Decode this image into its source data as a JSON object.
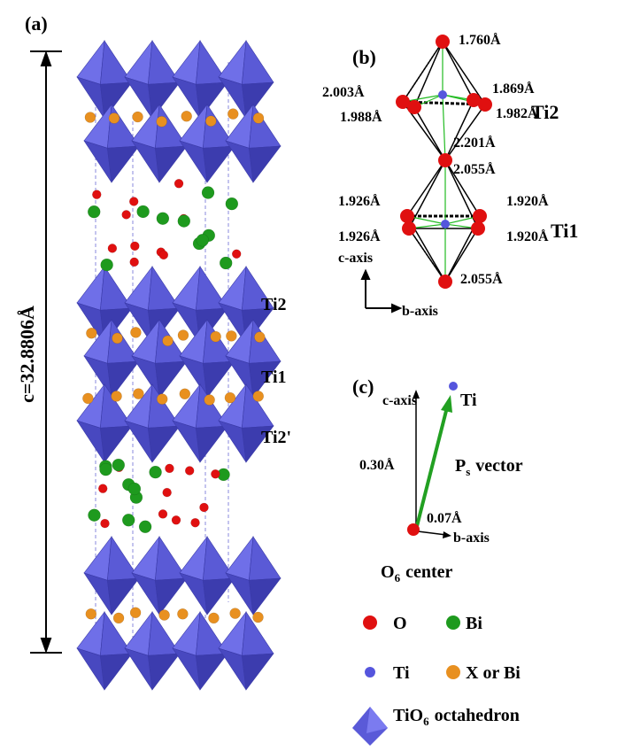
{
  "panel_a": {
    "label": "(a)",
    "lattice": "c=32.8806Å",
    "sites": [
      "Ti2",
      "Ti1",
      "Ti2'"
    ]
  },
  "panel_b": {
    "label": "(b)",
    "bonds": [
      "1.760Å",
      "2.003Å",
      "1.869Å",
      "1.988Å",
      "1.982Å",
      "2.201Å",
      "2.055Å",
      "1.926Å",
      "1.920Å",
      "1.926Å",
      "1.920Å",
      "2.055Å"
    ],
    "sites": [
      "Ti2",
      "Ti1"
    ],
    "axes": [
      "c-axis",
      "b-axis"
    ]
  },
  "panel_c": {
    "label": "(c)",
    "axes": [
      "c-axis",
      "b-axis"
    ],
    "atom": "Ti",
    "c_shift": "0.30Å",
    "b_shift": "0.07Å",
    "vector": {
      "symbol": "P",
      "sub": "s",
      "rest": "vector"
    },
    "origin": {
      "symbol": "O",
      "sub": "6",
      "rest": "center"
    }
  },
  "legend": [
    {
      "label": "O"
    },
    {
      "label": "Bi"
    },
    {
      "label": "Ti"
    },
    {
      "label": "X or Bi"
    },
    {
      "symbol": "TiO",
      "sub": "6",
      "rest": "octahedron"
    }
  ]
}
